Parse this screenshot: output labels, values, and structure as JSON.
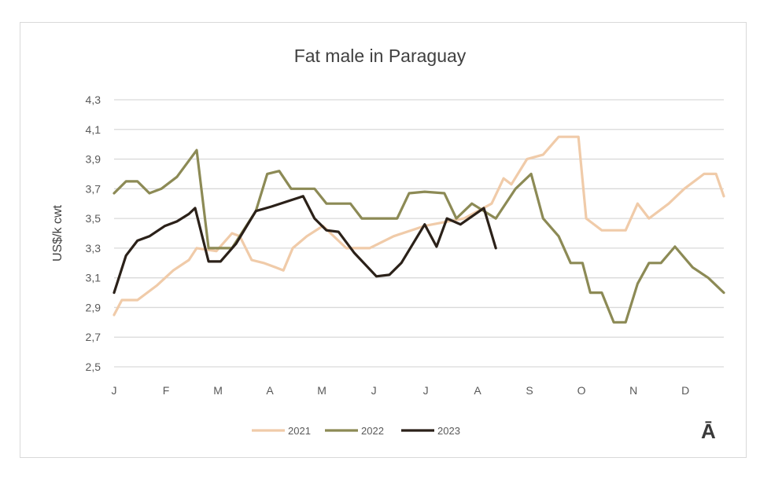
{
  "chart_data": {
    "type": "line",
    "title": "Fat male in Paraguay",
    "xlabel": "",
    "ylabel": "US$/k cwt",
    "x_unit": "month (0 = January)",
    "x_tick_labels": [
      "J",
      "F",
      "M",
      "A",
      "M",
      "J",
      "J",
      "A",
      "S",
      "O",
      "N",
      "D"
    ],
    "y_tick_labels": [
      "2,5",
      "2,7",
      "2,9",
      "3,1",
      "3,3",
      "3,5",
      "3,7",
      "3,9",
      "4,1",
      "4,3"
    ],
    "ylim": [
      2.5,
      4.3
    ],
    "xlim": [
      0,
      11.74
    ],
    "grid": "horizontal",
    "legend": "bottom",
    "series": [
      {
        "name": "2021",
        "color": "#f0cba9",
        "x": [
          0,
          0.15,
          0.45,
          0.83,
          1.14,
          1.44,
          1.59,
          1.97,
          2.27,
          2.42,
          2.65,
          2.88,
          3.11,
          3.26,
          3.44,
          3.71,
          4.02,
          4.47,
          4.92,
          5.38,
          5.98,
          6.74,
          7.27,
          7.5,
          7.65,
          7.95,
          8.26,
          8.56,
          8.94,
          9.09,
          9.39,
          9.85,
          10.08,
          10.3,
          10.68,
          10.98,
          11.36,
          11.59,
          11.74
        ],
        "values": [
          2.85,
          2.95,
          2.95,
          3.05,
          3.15,
          3.22,
          3.3,
          3.28,
          3.4,
          3.38,
          3.22,
          3.2,
          3.17,
          3.15,
          3.3,
          3.38,
          3.45,
          3.3,
          3.3,
          3.38,
          3.45,
          3.5,
          3.6,
          3.77,
          3.73,
          3.9,
          3.93,
          4.05,
          4.05,
          3.5,
          3.42,
          3.42,
          3.6,
          3.5,
          3.6,
          3.7,
          3.8,
          3.8,
          3.65
        ]
      },
      {
        "name": "2022",
        "color": "#8c8a55",
        "x": [
          0,
          0.23,
          0.45,
          0.68,
          0.91,
          1.21,
          1.59,
          1.82,
          1.97,
          2.27,
          2.73,
          2.95,
          3.18,
          3.41,
          3.86,
          4.09,
          4.55,
          4.77,
          5.45,
          5.68,
          5.98,
          6.36,
          6.59,
          6.89,
          7.12,
          7.35,
          7.73,
          8.03,
          8.26,
          8.56,
          8.79,
          9.02,
          9.17,
          9.39,
          9.62,
          9.85,
          10.08,
          10.3,
          10.53,
          10.8,
          11.14,
          11.44,
          11.74
        ],
        "values": [
          3.67,
          3.75,
          3.75,
          3.67,
          3.7,
          3.78,
          3.96,
          3.3,
          3.3,
          3.3,
          3.55,
          3.8,
          3.82,
          3.7,
          3.7,
          3.6,
          3.6,
          3.5,
          3.5,
          3.67,
          3.68,
          3.67,
          3.5,
          3.6,
          3.55,
          3.5,
          3.7,
          3.8,
          3.5,
          3.38,
          3.2,
          3.2,
          3.0,
          3.0,
          2.8,
          2.8,
          3.06,
          3.2,
          3.2,
          3.31,
          3.17,
          3.1,
          3.0
        ]
      },
      {
        "name": "2023",
        "color": "#2b2119",
        "x": [
          0,
          0.23,
          0.45,
          0.68,
          0.98,
          1.21,
          1.44,
          1.56,
          1.82,
          2.05,
          2.35,
          2.73,
          3.03,
          3.64,
          3.86,
          4.09,
          4.32,
          4.62,
          5.05,
          5.3,
          5.53,
          5.98,
          6.21,
          6.41,
          6.67,
          7.12,
          7.35
        ],
        "values": [
          3.0,
          3.25,
          3.35,
          3.38,
          3.45,
          3.48,
          3.53,
          3.57,
          3.21,
          3.21,
          3.33,
          3.55,
          3.58,
          3.65,
          3.5,
          3.42,
          3.41,
          3.27,
          3.11,
          3.12,
          3.2,
          3.46,
          3.31,
          3.5,
          3.46,
          3.57,
          3.3
        ]
      }
    ]
  },
  "corner_mark": "Ā"
}
